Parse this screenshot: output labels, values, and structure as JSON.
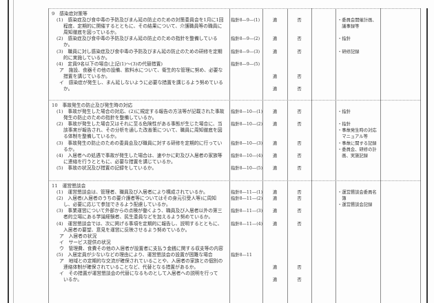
{
  "mark_ok": "適",
  "mark_ng": "否",
  "sections": [
    {
      "heading": "9　感染症対策等",
      "items": [
        {
          "kind": "num",
          "lines": [
            "(1)　感染症及び食中毒の予防及びまん延の防止のための対策委員会を1月に1回",
            "程度、定期的に開催するとともに、その結果について、介護職員等の職員に",
            "周知徹底を図っているか。"
          ],
          "ref": "指針8—9—(1)",
          "check": true,
          "docs": [
            "・委員会開催計画、",
            "　議事録等"
          ]
        },
        {
          "kind": "num",
          "lines": [
            "(2)　感染症及び食中毒の予防及びまん延の防止のための指針を整備している",
            "か。"
          ],
          "ref": "指針8—9—(2)",
          "check": true,
          "docs": [
            "・指針"
          ]
        },
        {
          "kind": "num",
          "lines": [
            "(3)　職員に対し感染症及び食中毒の予防及びまん延の防止のための研修を定期",
            "的に実施しているか。"
          ],
          "ref": "指針8—9—(3)",
          "check": true,
          "docs": [
            "・研修記録"
          ]
        },
        {
          "kind": "num",
          "lines": [
            "(4)　定員9名以下の場合(上記(1)～(3)の代替措置)"
          ],
          "ref": "指針8—9—(5)",
          "check": false,
          "docs": []
        },
        {
          "kind": "sub",
          "lines": [
            "ア　施設、食器その他の設備、飲料水について、衛生的な管理に努め、必要な",
            "措置を講じているか。"
          ],
          "ref": "",
          "check": true,
          "docs": []
        },
        {
          "kind": "sub",
          "lines": [
            "イ　感染症が発生し、まん延しないように必要な措置を講じるよう努めている",
            "か。"
          ],
          "ref": "",
          "check": true,
          "docs": []
        }
      ]
    },
    {
      "heading": "10　事故発生の防止及び発生時の対応",
      "items": [
        {
          "kind": "num",
          "lines": [
            "(1)　事故が発生した場合の対応、(2)に規定する報告の方法等が記載された事故",
            "発生の防止のための指針を整備しているか。"
          ],
          "ref": "指針8—10—(1)",
          "check": true,
          "docs": [
            "・指針"
          ]
        },
        {
          "kind": "num",
          "lines": [
            "(2)　事故が発生した場合又はそれに至る危険性がある事態が生じた場合に、当",
            "該事実が報告され、その分析を通した改善策について、職員に周知徹底を図",
            "る体制を整備しているか。"
          ],
          "ref": "指針8—10—(2)",
          "check": true,
          "docs": [
            "・指針",
            "・事故発生時の対応",
            "　マニュアル等",
            "・事故に関する記録",
            "・委員会、研修の計",
            "　画、実施記録"
          ]
        },
        {
          "kind": "num",
          "lines": [
            "(3)　事故発生の防止のための委員会及び職員に対する研修を定期的に行ってい",
            "るか。"
          ],
          "ref": "指針8—10—(3)",
          "check": true,
          "docs": []
        },
        {
          "kind": "num",
          "lines": [
            "(4)　入居者への処遇で事故が発生した場合は、速やかに町及び入居者の家族等",
            "に連絡を行うとともに、必要な措置を講じているか。"
          ],
          "ref": "指針8—10—(4)",
          "check": true,
          "docs": []
        },
        {
          "kind": "num",
          "lines": [
            "(5)　事故の状況及び措置の記録をしているか。"
          ],
          "ref": "指針8—10—(5)",
          "check": true,
          "docs": []
        }
      ]
    },
    {
      "heading": "11　運営懇談会",
      "items": [
        {
          "kind": "num",
          "lines": [
            "(1)　運営懇談会は、管理者、職員及び入居者により構成されているか。"
          ],
          "ref": "指針8—11—(1)",
          "check": true,
          "docs": [
            "・運営懇談会委員名",
            "　簿",
            "・運営懇談会記録"
          ]
        },
        {
          "kind": "num",
          "lines": [
            "(2)　入居者(入居者のうちの要介護者等についてはその身元引受人等)に周知",
            "し、必要に応じて参加できるよう配慮しているか。"
          ],
          "ref": "指針8—11—(2)",
          "check": true,
          "docs": []
        },
        {
          "kind": "num",
          "lines": [
            "(3)　事業運営について外部からの点検が働くよう、職員及び入居者以外の第三",
            "者的立場にある学識経験者、民生委員などを加えるよう努めているか。"
          ],
          "ref": "指針8—11—(3)",
          "check": true,
          "docs": []
        },
        {
          "kind": "num",
          "lines": [
            "(4)　運営懇談会では、次に掲げる事項を定期的に報告し、説明するとともに、",
            "入居者の要望、意見を運営に反映させるよう努めているか。"
          ],
          "ref": "指針8—11—(4)",
          "check": true,
          "docs": []
        },
        {
          "kind": "sub",
          "lines": [
            "ア　入居者の状況"
          ],
          "ref": "",
          "check": false,
          "docs": []
        },
        {
          "kind": "sub",
          "lines": [
            "イ　サービス提供の状況"
          ],
          "ref": "",
          "check": false,
          "docs": []
        },
        {
          "kind": "sub",
          "lines": [
            "ウ　管理費、食費その他の入居者が設置者に支払う金銭に関する収支等の内容"
          ],
          "ref": "",
          "check": false,
          "docs": []
        },
        {
          "kind": "num",
          "lines": [
            "(5)　入居定員が少ないなどの理由により、運営懇談会の設置が困難な場合"
          ],
          "ref": "指針8—11",
          "check": false,
          "docs": []
        },
        {
          "kind": "sub",
          "lines": [
            "ア　地域との定期的な交流が確保されていることや、入居者の家族との個別の",
            "連絡体制が確保されていることなど、代替となる措置があるか。"
          ],
          "ref": "",
          "check": true,
          "docs": []
        },
        {
          "kind": "sub",
          "lines": [
            "イ　その措置が運営懇談会の代替になるものとして入居者への説明を行って",
            "いるか。"
          ],
          "ref": "",
          "check": true,
          "docs": []
        }
      ]
    }
  ]
}
